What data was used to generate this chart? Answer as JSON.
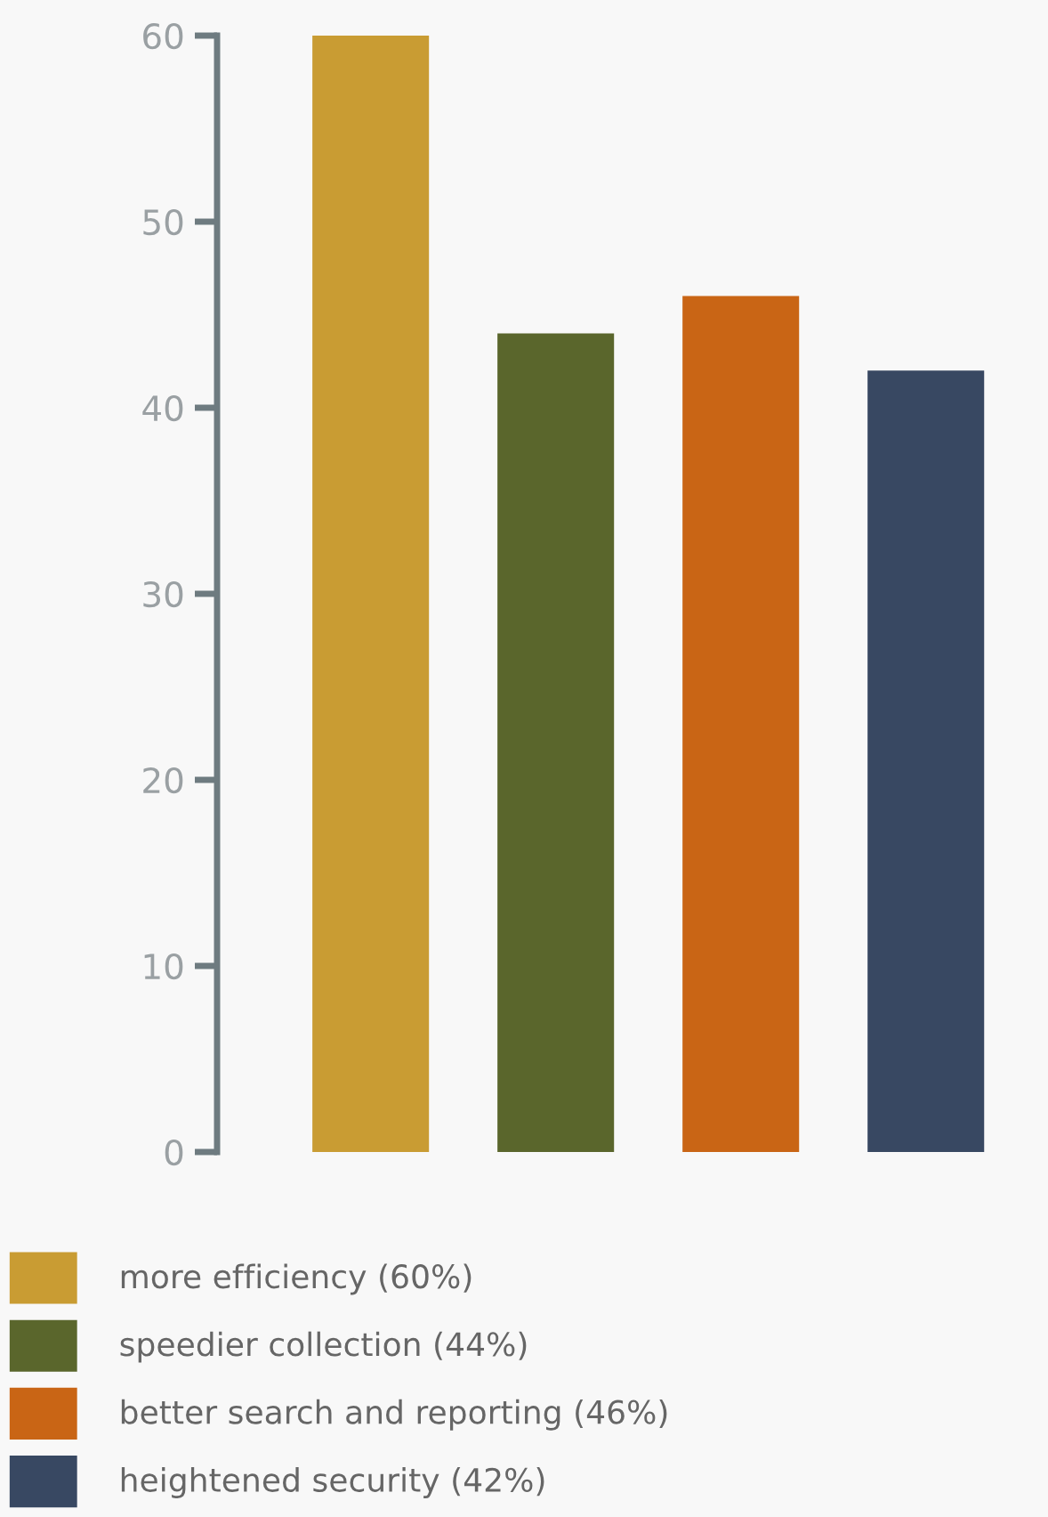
{
  "chart_data": {
    "type": "bar",
    "categories": [
      null,
      null,
      null,
      null
    ],
    "stacked": true,
    "series": [
      {
        "name": "more efficiency (60%)",
        "color": "#c99c33",
        "values": [
          60,
          null,
          null,
          null
        ]
      },
      {
        "name": "speedier collection (44%)",
        "color": "#5a662c",
        "values": [
          null,
          44,
          null,
          null
        ]
      },
      {
        "name": "better search and reporting (46%)",
        "color": "#c96515",
        "values": [
          null,
          null,
          46,
          null
        ]
      },
      {
        "name": "heightened security (42%)",
        "color": "#384862",
        "values": [
          null,
          null,
          null,
          42
        ]
      }
    ],
    "ylim": [
      0,
      60
    ],
    "yticks": [
      0,
      10,
      20,
      30,
      40,
      50,
      60
    ],
    "grid": false,
    "legend": "bottom"
  }
}
